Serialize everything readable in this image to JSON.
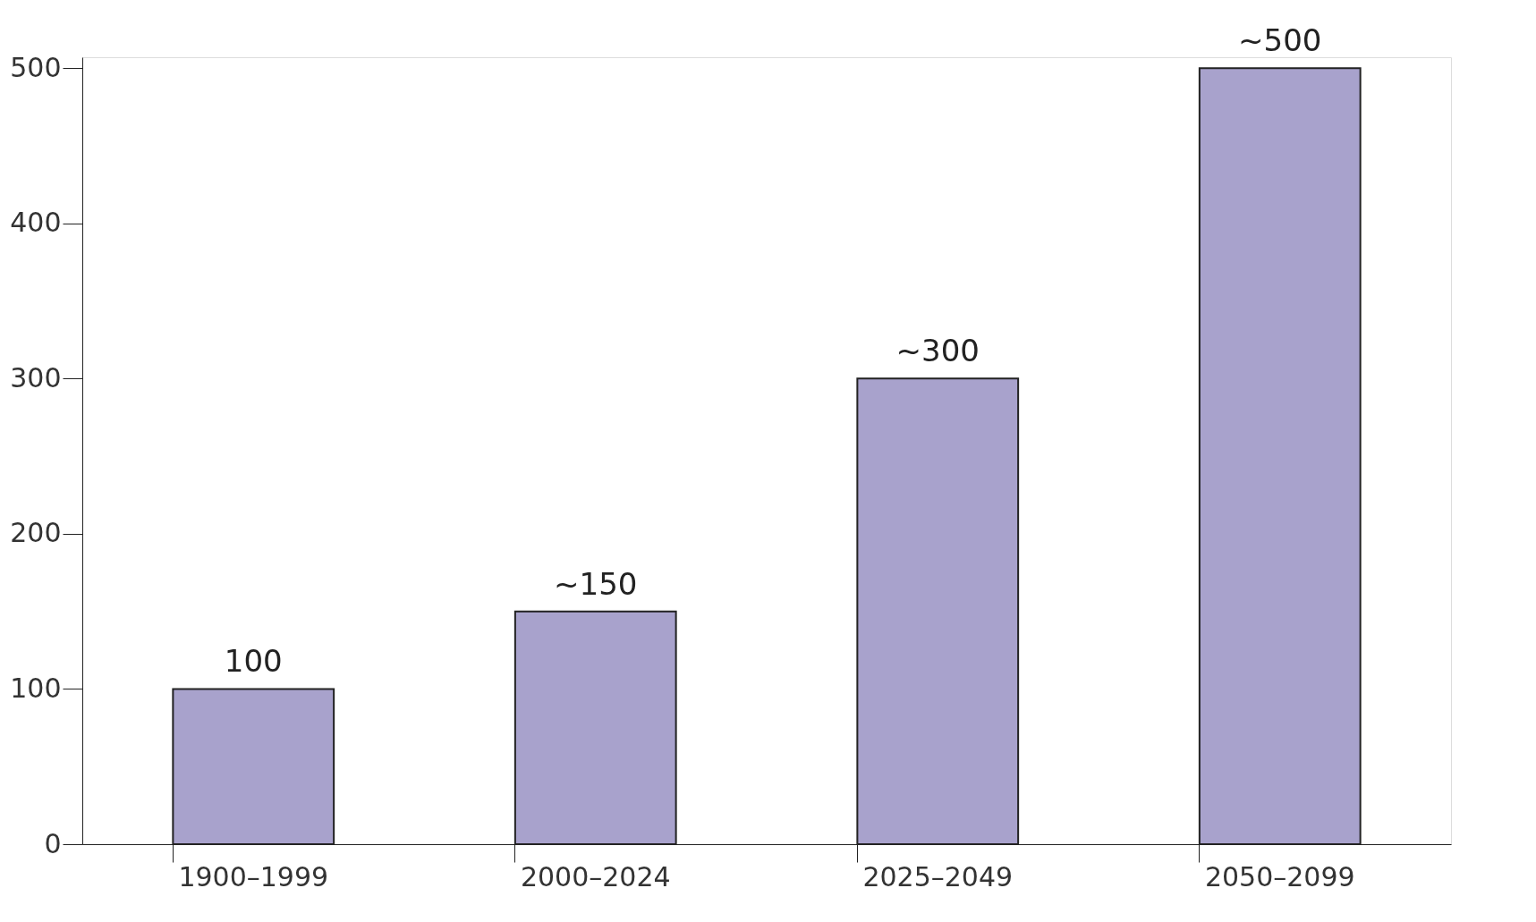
{
  "chart_data": {
    "type": "bar",
    "categories": [
      "1900–1999",
      "2000–2024",
      "2025–2049",
      "2050–2099"
    ],
    "values": [
      100,
      150,
      300,
      500
    ],
    "value_labels": [
      "100",
      "~150",
      "~300",
      "~500"
    ],
    "color": "#a8a2cc",
    "ylim": [
      0,
      507
    ],
    "yticks": [
      0,
      100,
      200,
      300,
      400,
      500
    ],
    "grid": false
  }
}
